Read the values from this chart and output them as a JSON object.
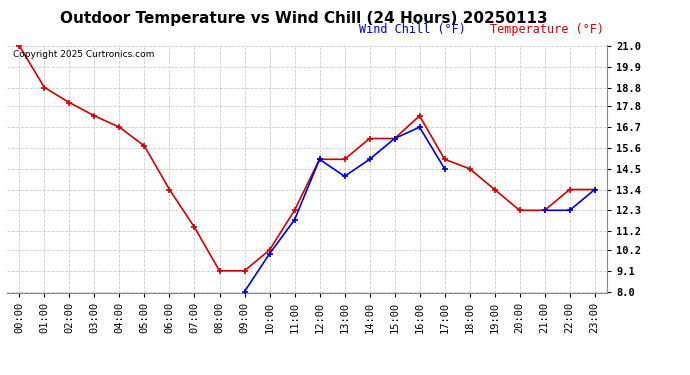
{
  "title": "Outdoor Temperature vs Wind Chill (24 Hours) 20250113",
  "copyright_text": "Copyright 2025 Curtronics.com",
  "legend_wind_chill": "Wind Chill (°F)",
  "legend_temperature": "Temperature (°F)",
  "hours": [
    "00:00",
    "01:00",
    "02:00",
    "03:00",
    "04:00",
    "05:00",
    "06:00",
    "07:00",
    "08:00",
    "09:00",
    "10:00",
    "11:00",
    "12:00",
    "13:00",
    "14:00",
    "15:00",
    "16:00",
    "17:00",
    "18:00",
    "19:00",
    "20:00",
    "21:00",
    "22:00",
    "23:00"
  ],
  "temperature": [
    21.0,
    18.8,
    18.0,
    17.3,
    16.7,
    15.7,
    13.4,
    11.4,
    9.1,
    9.1,
    10.2,
    12.3,
    15.0,
    15.0,
    16.1,
    16.1,
    17.3,
    15.0,
    14.5,
    13.4,
    12.3,
    12.3,
    13.4,
    13.4
  ],
  "wind_chill": [
    null,
    null,
    null,
    null,
    null,
    null,
    null,
    null,
    null,
    8.0,
    10.0,
    11.8,
    15.0,
    14.1,
    15.0,
    16.1,
    16.7,
    14.5,
    null,
    null,
    null,
    12.3,
    12.3,
    13.4
  ],
  "temp_color": "#cc0000",
  "wind_chill_color": "#0000cc",
  "marker": "+",
  "markersize": 5,
  "linewidth": 1.2,
  "ylim": [
    8.0,
    21.0
  ],
  "yticks": [
    8.0,
    9.1,
    10.2,
    11.2,
    12.3,
    13.4,
    14.5,
    15.6,
    16.7,
    17.8,
    18.8,
    19.9,
    21.0
  ],
  "grid_color": "#cccccc",
  "background_color": "#ffffff",
  "title_fontsize": 11,
  "axis_fontsize": 7.5,
  "copyright_fontsize": 6.5,
  "legend_fontsize": 8.5
}
